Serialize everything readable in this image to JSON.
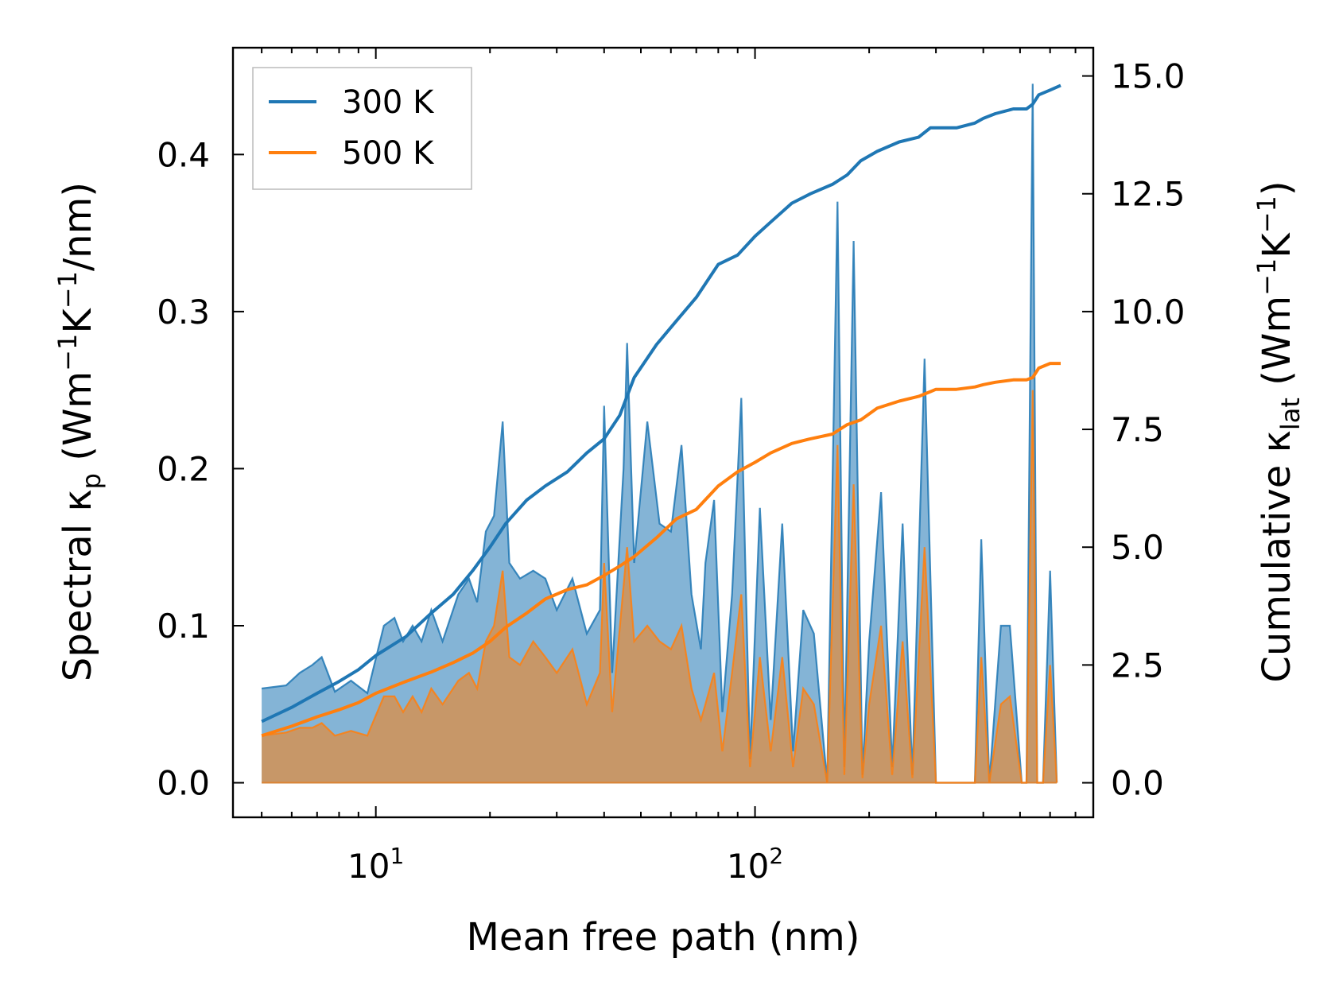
{
  "chart_data": {
    "type": "line",
    "title": "",
    "xlabel": "Mean free path (nm)",
    "ylabel_left": {
      "main": "Spectral κ",
      "sub": "p",
      "unit_pre": " (Wm",
      "sup1": "−1",
      "unit_mid": "K",
      "sup2": "−1",
      "unit_post": "/nm)"
    },
    "ylabel_right": {
      "main": "Cumulative κ",
      "sub": "lat",
      "unit_pre": " (Wm",
      "sup1": "−1",
      "unit_mid": "K",
      "sup2": "−1",
      "unit_post": ")"
    },
    "x_scale": "log",
    "xlim": [
      4.2,
      780
    ],
    "ylim_left": [
      -0.022,
      0.468
    ],
    "ylim_right": [
      -0.733,
      15.6
    ],
    "x_ticks": [
      {
        "value": 10,
        "base": "10",
        "exp": "1"
      },
      {
        "value": 100,
        "base": "10",
        "exp": "2"
      }
    ],
    "y_ticks_left": [
      {
        "value": 0.0,
        "label": "0.0"
      },
      {
        "value": 0.1,
        "label": "0.1"
      },
      {
        "value": 0.2,
        "label": "0.2"
      },
      {
        "value": 0.3,
        "label": "0.3"
      },
      {
        "value": 0.4,
        "label": "0.4"
      }
    ],
    "y_ticks_right": [
      {
        "value": 0.0,
        "label": "0.0"
      },
      {
        "value": 2.5,
        "label": "2.5"
      },
      {
        "value": 5.0,
        "label": "5.0"
      },
      {
        "value": 7.5,
        "label": "7.5"
      },
      {
        "value": 10.0,
        "label": "10.0"
      },
      {
        "value": 12.5,
        "label": "12.5"
      },
      {
        "value": 15.0,
        "label": "15.0"
      }
    ],
    "legend": {
      "position": "top-left",
      "entries": [
        {
          "label": "300 K",
          "color": "#1f77b4"
        },
        {
          "label": "500 K",
          "color": "#ff7f0e"
        }
      ]
    },
    "spectral_series": [
      {
        "name": "300 K",
        "color": "#1f77b4",
        "x": [
          5.0,
          5.8,
          6.3,
          6.8,
          7.2,
          7.8,
          8.6,
          9.5,
          10.5,
          11.2,
          11.8,
          12.5,
          13.2,
          14.0,
          15.0,
          16.5,
          17.6,
          18.5,
          19.5,
          20.5,
          21.6,
          22.5,
          24.0,
          26.0,
          28.0,
          30.0,
          33.0,
          36.0,
          39.0,
          40.0,
          42.0,
          45.0,
          46.0,
          48.0,
          52.0,
          56.0,
          60.0,
          64.0,
          68.0,
          72.0,
          74.0,
          78.0,
          82.0,
          87.0,
          92.0,
          97.0,
          103.0,
          110.0,
          118.0,
          126.0,
          134.0,
          143.0,
          155.0,
          165.0,
          172.0,
          182.0,
          192.0,
          200.0,
          215.0,
          230.0,
          245.0,
          260.0,
          280.0,
          300.0,
          340.0,
          380.0,
          395.0,
          415.0,
          445.0,
          470.0,
          505.0,
          520.0,
          540.0,
          555.0,
          575.0,
          600.0,
          625.0
        ],
        "y": [
          0.06,
          0.062,
          0.07,
          0.075,
          0.08,
          0.058,
          0.065,
          0.057,
          0.1,
          0.105,
          0.09,
          0.1,
          0.09,
          0.11,
          0.09,
          0.12,
          0.13,
          0.115,
          0.16,
          0.17,
          0.23,
          0.14,
          0.13,
          0.135,
          0.13,
          0.11,
          0.13,
          0.095,
          0.11,
          0.24,
          0.07,
          0.2,
          0.28,
          0.14,
          0.23,
          0.165,
          0.16,
          0.215,
          0.12,
          0.085,
          0.14,
          0.18,
          0.045,
          0.12,
          0.245,
          0.015,
          0.175,
          0.04,
          0.165,
          0.02,
          0.11,
          0.095,
          0.0,
          0.37,
          0.01,
          0.345,
          0.005,
          0.09,
          0.185,
          0.01,
          0.165,
          0.005,
          0.27,
          0.0,
          0.0,
          0.0,
          0.155,
          0.0,
          0.1,
          0.1,
          0.0,
          0.0,
          0.445,
          0.0,
          0.0,
          0.135,
          0.0
        ]
      },
      {
        "name": "500 K",
        "color": "#ff7f0e",
        "x": [
          5.0,
          5.8,
          6.3,
          6.8,
          7.2,
          7.8,
          8.6,
          9.5,
          10.5,
          11.2,
          11.8,
          12.5,
          13.2,
          14.0,
          15.0,
          16.5,
          17.6,
          18.5,
          19.5,
          20.5,
          21.6,
          22.5,
          24.0,
          26.0,
          28.0,
          30.0,
          33.0,
          36.0,
          39.0,
          40.0,
          42.0,
          45.0,
          46.0,
          48.0,
          52.0,
          56.0,
          60.0,
          64.0,
          68.0,
          72.0,
          74.0,
          78.0,
          82.0,
          87.0,
          92.0,
          97.0,
          103.0,
          110.0,
          118.0,
          126.0,
          134.0,
          143.0,
          155.0,
          165.0,
          172.0,
          182.0,
          192.0,
          200.0,
          215.0,
          230.0,
          245.0,
          260.0,
          280.0,
          300.0,
          340.0,
          380.0,
          395.0,
          415.0,
          445.0,
          470.0,
          505.0,
          520.0,
          540.0,
          555.0,
          575.0,
          600.0,
          625.0
        ],
        "y": [
          0.03,
          0.032,
          0.035,
          0.035,
          0.038,
          0.03,
          0.033,
          0.03,
          0.055,
          0.055,
          0.045,
          0.055,
          0.045,
          0.06,
          0.05,
          0.065,
          0.07,
          0.06,
          0.09,
          0.1,
          0.135,
          0.08,
          0.075,
          0.09,
          0.08,
          0.07,
          0.085,
          0.05,
          0.07,
          0.14,
          0.045,
          0.125,
          0.15,
          0.09,
          0.1,
          0.09,
          0.085,
          0.1,
          0.06,
          0.04,
          0.05,
          0.07,
          0.02,
          0.07,
          0.12,
          0.01,
          0.08,
          0.02,
          0.08,
          0.01,
          0.06,
          0.05,
          0.0,
          0.215,
          0.005,
          0.19,
          0.003,
          0.05,
          0.1,
          0.005,
          0.09,
          0.003,
          0.15,
          0.0,
          0.0,
          0.0,
          0.08,
          0.0,
          0.05,
          0.055,
          0.0,
          0.0,
          0.25,
          0.0,
          0.0,
          0.075,
          0.0
        ]
      }
    ],
    "cumulative_series": [
      {
        "name": "300 K",
        "color": "#1f77b4",
        "x": [
          5.0,
          6.0,
          7.0,
          8.0,
          9.0,
          10.0,
          12.0,
          14.0,
          16.0,
          18.0,
          20.0,
          22.0,
          25.0,
          28.0,
          32.0,
          36.0,
          40.0,
          44.0,
          48.0,
          55.0,
          62.0,
          70.0,
          80.0,
          90.0,
          100.0,
          110.0,
          125.0,
          140.0,
          160.0,
          175.0,
          190.0,
          210.0,
          240.0,
          270.0,
          290.0,
          300.0,
          340.0,
          380.0,
          400.0,
          430.0,
          480.0,
          520.0,
          540.0,
          560.0,
          600.0,
          640.0
        ],
        "y": [
          1.3,
          1.6,
          1.9,
          2.15,
          2.4,
          2.7,
          3.1,
          3.6,
          4.0,
          4.5,
          5.0,
          5.5,
          6.0,
          6.3,
          6.6,
          7.0,
          7.3,
          7.8,
          8.6,
          9.3,
          9.8,
          10.3,
          11.0,
          11.2,
          11.6,
          11.9,
          12.3,
          12.5,
          12.7,
          12.9,
          13.2,
          13.4,
          13.6,
          13.7,
          13.9,
          13.9,
          13.9,
          14.0,
          14.1,
          14.2,
          14.3,
          14.3,
          14.4,
          14.6,
          14.7,
          14.8
        ]
      },
      {
        "name": "500 K",
        "color": "#ff7f0e",
        "x": [
          5.0,
          6.0,
          7.0,
          8.0,
          9.0,
          10.0,
          12.0,
          14.0,
          16.0,
          18.0,
          20.0,
          22.0,
          25.0,
          28.0,
          32.0,
          36.0,
          40.0,
          44.0,
          48.0,
          55.0,
          62.0,
          70.0,
          80.0,
          90.0,
          100.0,
          110.0,
          125.0,
          140.0,
          160.0,
          175.0,
          190.0,
          210.0,
          240.0,
          270.0,
          290.0,
          300.0,
          340.0,
          380.0,
          400.0,
          430.0,
          480.0,
          520.0,
          540.0,
          560.0,
          600.0,
          640.0
        ],
        "y": [
          1.0,
          1.2,
          1.4,
          1.55,
          1.7,
          1.9,
          2.15,
          2.35,
          2.55,
          2.75,
          3.0,
          3.3,
          3.6,
          3.9,
          4.1,
          4.2,
          4.4,
          4.6,
          4.8,
          5.2,
          5.6,
          5.8,
          6.3,
          6.6,
          6.8,
          7.0,
          7.2,
          7.3,
          7.4,
          7.6,
          7.7,
          7.95,
          8.1,
          8.2,
          8.3,
          8.35,
          8.35,
          8.4,
          8.45,
          8.5,
          8.55,
          8.55,
          8.6,
          8.8,
          8.9,
          8.9
        ]
      }
    ]
  }
}
